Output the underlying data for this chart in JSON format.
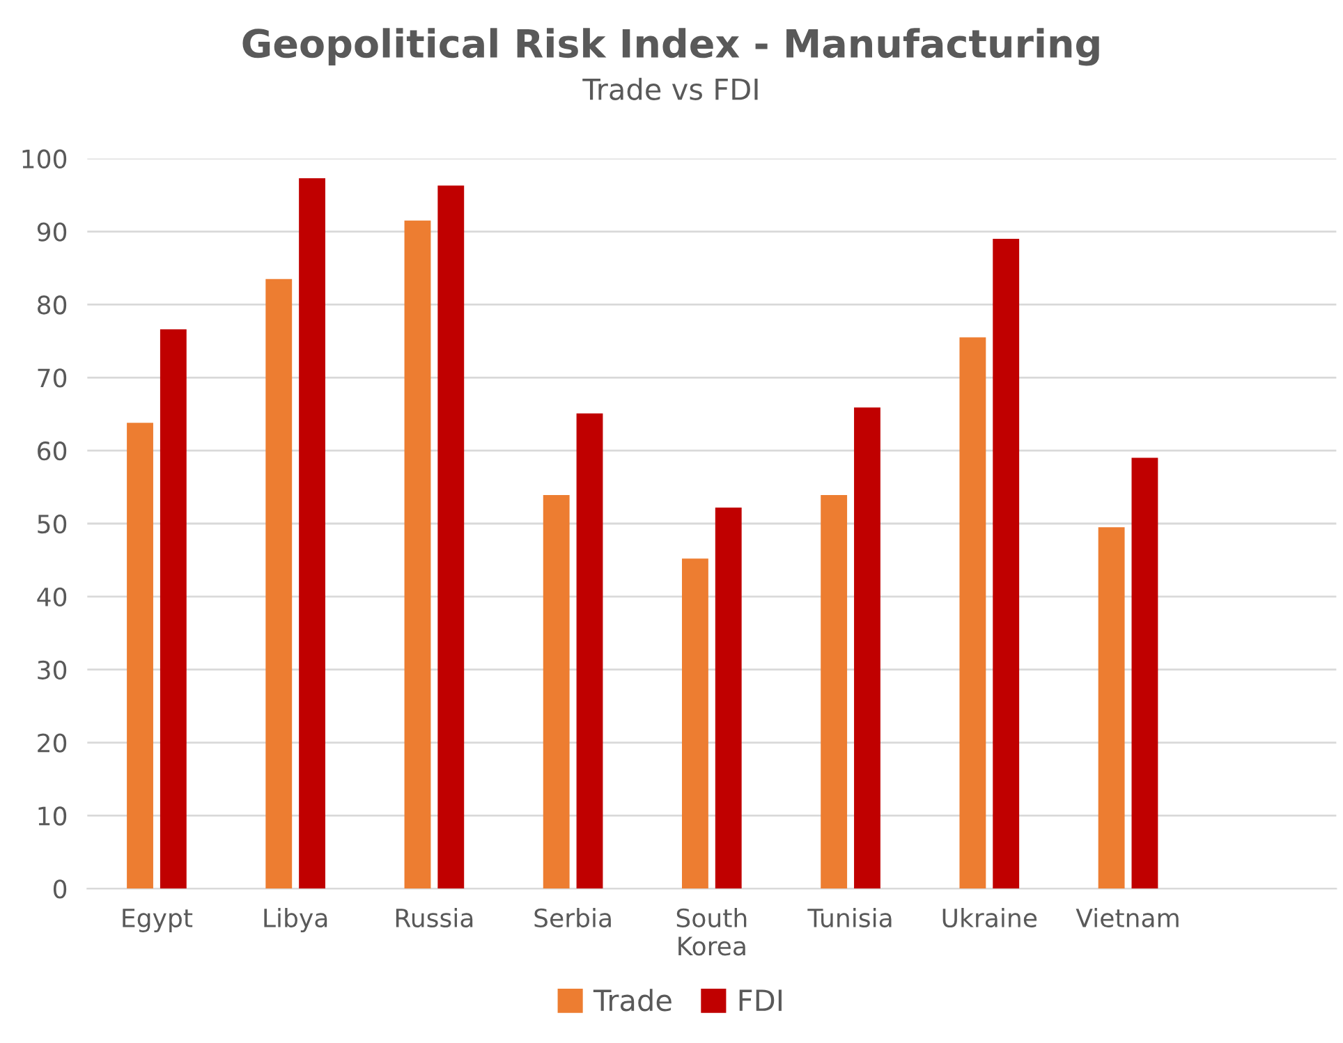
{
  "chart_data": {
    "type": "bar",
    "title": "Geopolitical Risk Index - Manufacturing",
    "subtitle": "Trade vs FDI",
    "categories": [
      "Egypt",
      "Libya",
      "Russia",
      "Serbia",
      "South\nKorea",
      "Tunisia",
      "Ukraine",
      "Vietnam",
      null
    ],
    "series": [
      {
        "name": "Trade",
        "color": "#ed7d31",
        "values": [
          63.8,
          83.5,
          91.5,
          53.9,
          45.2,
          53.9,
          75.5,
          49.5,
          null
        ]
      },
      {
        "name": "FDI",
        "color": "#c00000",
        "values": [
          76.6,
          97.3,
          96.3,
          65.1,
          52.2,
          65.9,
          89.0,
          59.0,
          null
        ]
      }
    ],
    "ylim": [
      0,
      100
    ],
    "yticks": [
      0,
      10,
      20,
      30,
      40,
      50,
      60,
      70,
      80,
      90,
      100
    ],
    "grid": "y",
    "legend": "bottom"
  }
}
